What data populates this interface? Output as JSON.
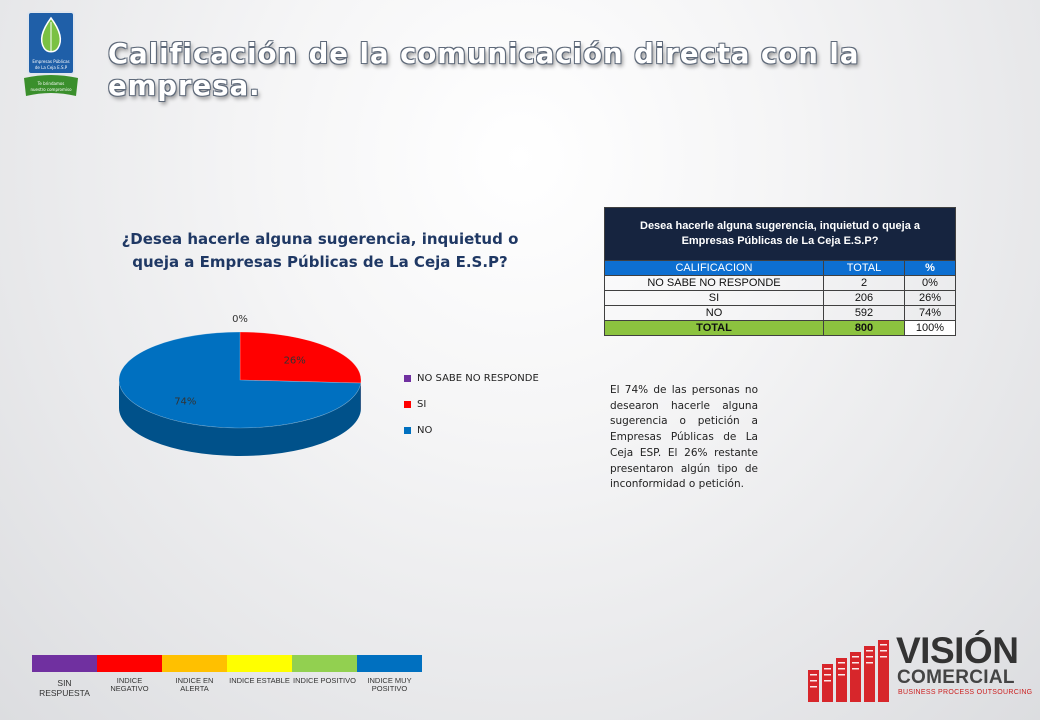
{
  "slide_title": "Calificación de la comunicación directa con la empresa.",
  "chart_title": {
    "line1": "¿Desea hacerle alguna sugerencia, inquietud o",
    "line2": "queja a Empresas Públicas de La Ceja E.S.P?"
  },
  "chart_data": {
    "type": "pie",
    "title": "¿Desea hacerle alguna sugerencia, inquietud o queja a Empresas Públicas de La Ceja E.S.P?",
    "categories": [
      "NO SABE NO RESPONDE",
      "SI",
      "NO"
    ],
    "values": [
      0,
      26,
      74
    ],
    "labels": [
      "0%",
      "26%",
      "74%"
    ],
    "colors": [
      "#7030a0",
      "#ff0000",
      "#0070c0"
    ],
    "legend": "right",
    "style": "3d"
  },
  "table": {
    "header": "Desea hacerle alguna sugerencia, inquietud o queja a Empresas Públicas de La Ceja E.S.P?",
    "columns": [
      "CALIFICACION",
      "TOTAL",
      "%"
    ],
    "rows": [
      [
        "NO SABE NO RESPONDE",
        "2",
        "0%"
      ],
      [
        "SI",
        "206",
        "26%"
      ],
      [
        "NO",
        "592",
        "74%"
      ]
    ],
    "total": [
      "TOTAL",
      "800",
      "100%"
    ]
  },
  "narrative": "El 74% de las personas no desearon hacerle alguna sugerencia o petición a Empresas Públicas de La Ceja ESP. El 26% restante presentaron algún tipo de inconformidad o petición.",
  "scale": [
    {
      "label": "SIN RESPUESTA",
      "color": "#7030a0"
    },
    {
      "label": "INDICE NEGATIVO",
      "color": "#ff0000"
    },
    {
      "label": "INDICE EN ALERTA",
      "color": "#ffc000"
    },
    {
      "label": "INDICE ESTABLE",
      "color": "#ffff00"
    },
    {
      "label": "INDICE POSITIVO",
      "color": "#92d050"
    },
    {
      "label": "INDICE MUY POSITIVO",
      "color": "#0070c0"
    }
  ],
  "brand": {
    "word": "VISIÓN",
    "sub": "COMERCIAL",
    "tagline": "BUSINESS PROCESS OUTSOURCING",
    "logo_text": [
      "Empresas Públicas",
      "de La Ceja E.S.P",
      "Te brindamos",
      "nuestro compromiso"
    ]
  }
}
